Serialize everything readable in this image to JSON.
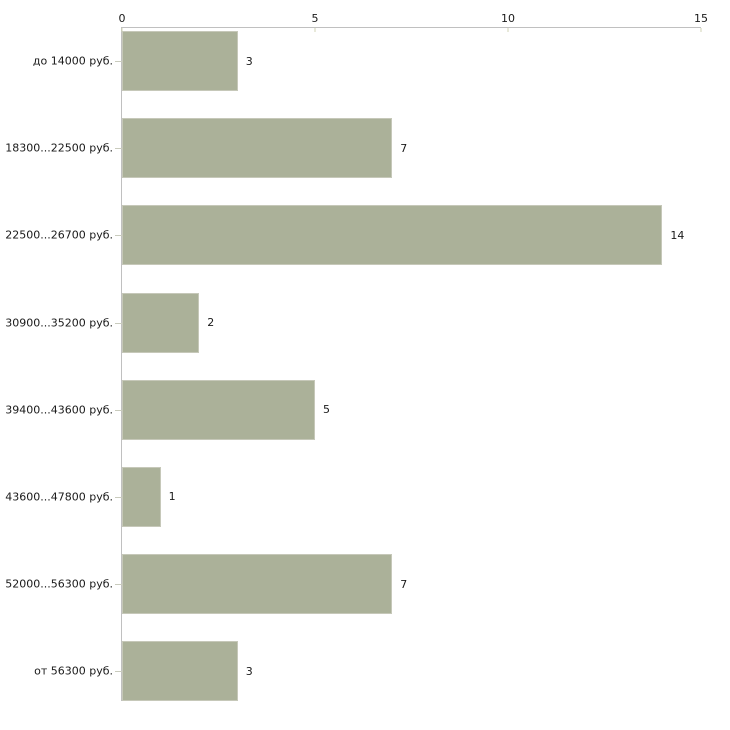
{
  "chart_data": {
    "type": "bar",
    "orientation": "horizontal",
    "categories": [
      "до 14000 руб.",
      "18300...22500 руб.",
      "22500...26700 руб.",
      "30900...35200 руб.",
      "39400...43600 руб.",
      "43600...47800 руб.",
      "52000...56300 руб.",
      "от 56300 руб."
    ],
    "values": [
      3,
      7,
      14,
      2,
      5,
      1,
      7,
      3
    ],
    "value_axis": {
      "min": 0,
      "max": 15,
      "ticks": [
        0,
        5,
        10,
        15
      ],
      "position": "top"
    },
    "grid": "off",
    "legend": "none",
    "colors": {
      "bar_fill": "#abb199",
      "bar_border": "#c6c8b9",
      "axis_line": "#c0c0c0",
      "axis_tick": "#d0d3b4",
      "category_tick": "#c9cbbd",
      "text": "#1a1a1a",
      "background": "#ffffff"
    }
  }
}
